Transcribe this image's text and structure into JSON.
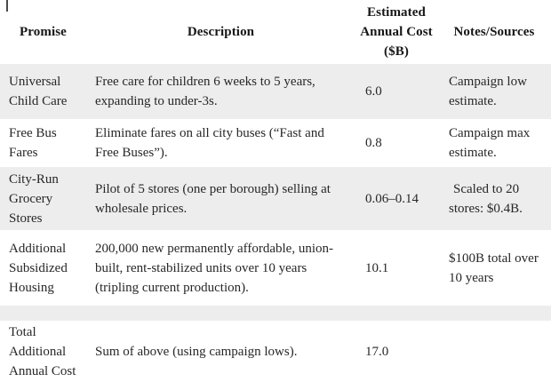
{
  "table": {
    "columns": [
      {
        "label": "Promise"
      },
      {
        "label": "Description"
      },
      {
        "label": "Estimated Annual Cost ($B)"
      },
      {
        "label": "Notes/Sources"
      }
    ],
    "rows": [
      {
        "promise": "Universal Child Care",
        "description": "Free care for children 6 weeks to 5 years, expanding to under-3s.",
        "cost": "6.0",
        "notes": "Campaign low estimate."
      },
      {
        "promise": "Free Bus Fares",
        "description": "Eliminate fares on all city buses (“Fast and Free Buses”).",
        "cost": "0.8",
        "notes": "Campaign max estimate."
      },
      {
        "promise": "City-Run Grocery Stores",
        "description": "Pilot of 5 stores (one per borough) selling at wholesale prices.",
        "cost": "0.06–0.14",
        "notes": "Scaled to 20 stores: $0.4B."
      },
      {
        "promise": "Additional Subsidized Housing",
        "description": "200,000 new permanently affordable, union-built, rent-stabilized units over 10 years (tripling current production).",
        "cost": "10.1",
        "notes": "$100B total over 10 years"
      }
    ],
    "total_row": {
      "promise": "Total Additional Annual Cost",
      "description": "Sum of above (using campaign lows).",
      "cost": "17.0",
      "notes": ""
    }
  },
  "colors": {
    "stripe": "#ededed",
    "background": "#ffffff",
    "body_text": "#272727",
    "header_text": "#161616"
  }
}
